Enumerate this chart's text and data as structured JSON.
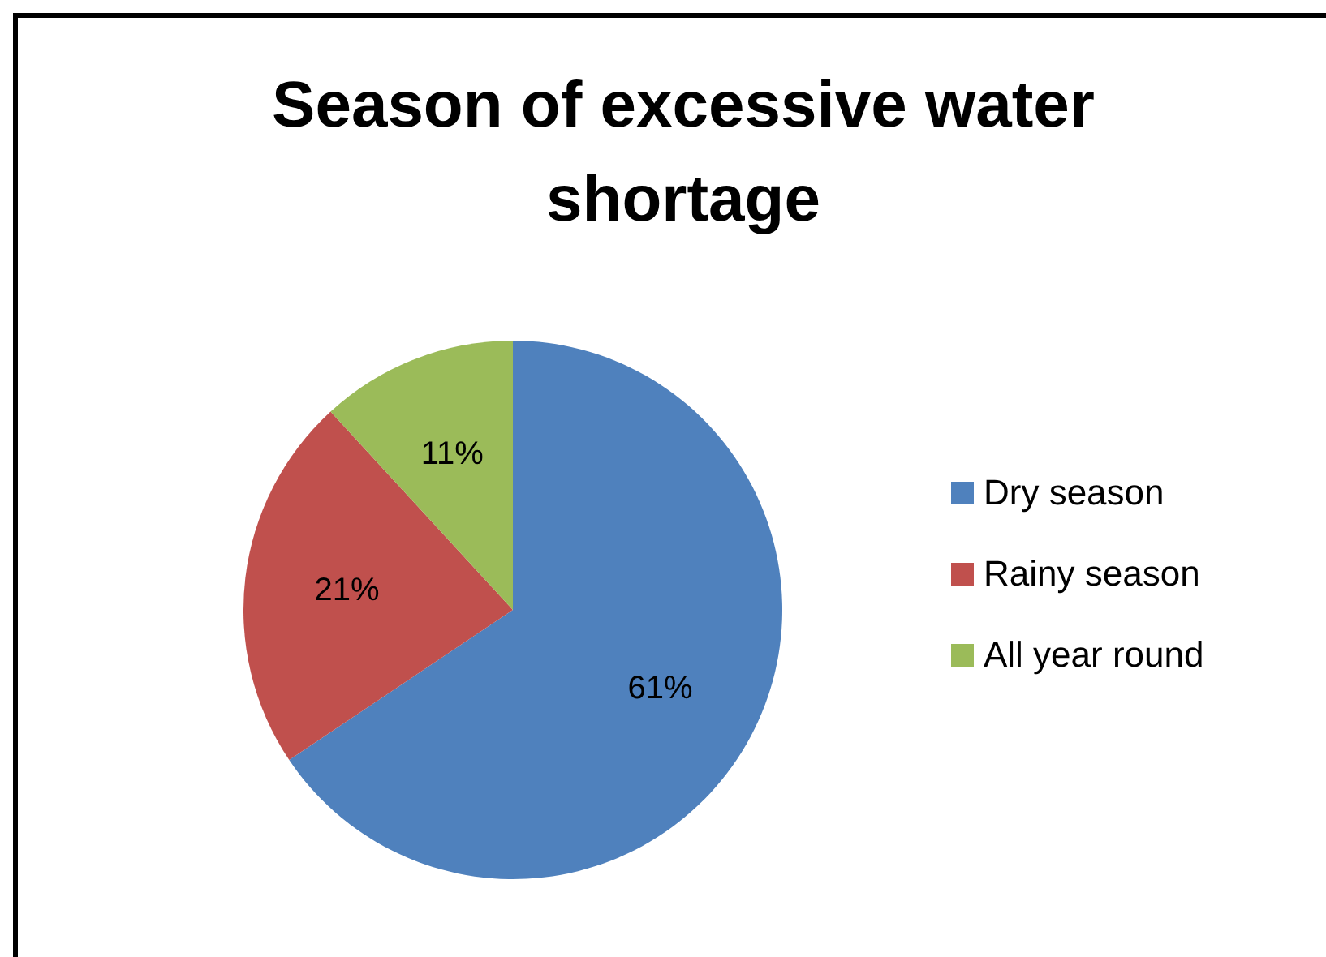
{
  "chart_data": {
    "type": "pie",
    "title": "Season of excessive water shortage",
    "categories": [
      "Dry season",
      "Rainy season",
      "All year round"
    ],
    "values": [
      61,
      21,
      11
    ],
    "value_labels": [
      "61%",
      "21%",
      "11%"
    ],
    "colors": [
      "#4f81bd",
      "#c0504d",
      "#9bbb59"
    ],
    "legend": "right"
  }
}
